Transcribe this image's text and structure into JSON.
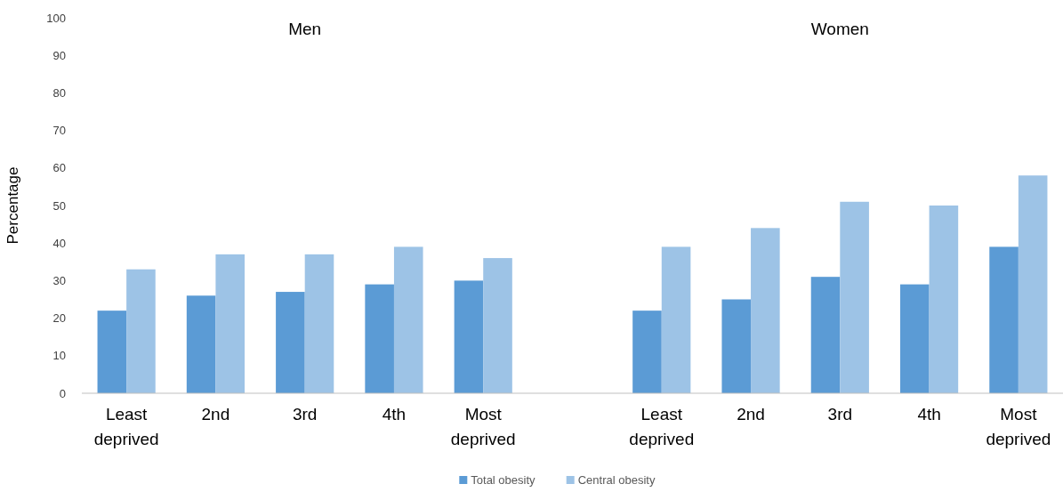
{
  "chart_data": {
    "type": "bar",
    "ylabel": "Percentage",
    "categories": [
      "Least deprived",
      "2nd",
      "3rd",
      "4th",
      "Most deprived",
      null,
      "Least deprived",
      "2nd",
      "3rd",
      "4th",
      "Most deprived"
    ],
    "series": [
      {
        "name": "Total obesity",
        "color": "#5b9bd5",
        "values": [
          22,
          26,
          27,
          29,
          30,
          null,
          22,
          25,
          31,
          29,
          39
        ]
      },
      {
        "name": "Central obesity",
        "color": "#9dc3e6",
        "values": [
          33,
          37,
          37,
          39,
          36,
          null,
          39,
          44,
          51,
          50,
          58
        ]
      }
    ],
    "ylim": [
      0,
      100
    ],
    "yticks": [
      0,
      10,
      20,
      30,
      40,
      50,
      60,
      70,
      80,
      90,
      100
    ],
    "grid": false,
    "legend": "bottom",
    "annotations": [
      "Men",
      "Women"
    ]
  }
}
